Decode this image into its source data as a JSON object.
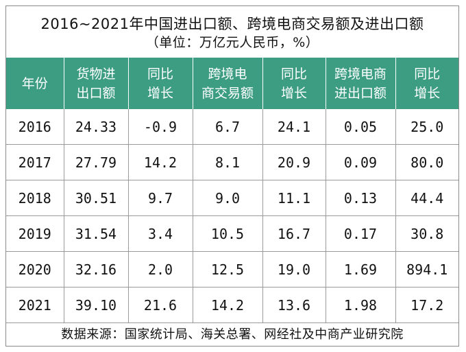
{
  "title_line1": "2016~2021年中国进出口额、跨境电商交易额及进出口额",
  "title_line2": "（单位：万亿元人民币，%）",
  "headers": [
    [
      "年份",
      ""
    ],
    [
      "货物进",
      "出口额"
    ],
    [
      "同比",
      "增长"
    ],
    [
      "跨境电",
      "商交易额"
    ],
    [
      "同比",
      "增长"
    ],
    [
      "跨境电商",
      "进出口额"
    ],
    [
      "同比",
      "增长"
    ]
  ],
  "rows": [
    [
      "2016",
      "24.33",
      "-0.9",
      "6.7",
      "24.1",
      "0.05",
      "25.0"
    ],
    [
      "2017",
      "27.79",
      "14.2",
      "8.1",
      "20.9",
      "0.09",
      "80.0"
    ],
    [
      "2018",
      "30.51",
      "9.7",
      "9.0",
      "11.1",
      "0.13",
      "44.4"
    ],
    [
      "2019",
      "31.54",
      "3.4",
      "10.5",
      "16.7",
      "0.17",
      "30.8"
    ],
    [
      "2020",
      "32.16",
      "2.0",
      "12.5",
      "19.0",
      "1.69",
      "894.1"
    ],
    [
      "2021",
      "39.10",
      "21.6",
      "14.2",
      "13.6",
      "1.98",
      "17.2"
    ]
  ],
  "source": "数据来源：国家统计局、海关总署、网经社及中商产业研究院",
  "colors": {
    "header_bg": "#3d9d83",
    "header_text": "#ffffff",
    "grid": "#9a9a9a"
  }
}
